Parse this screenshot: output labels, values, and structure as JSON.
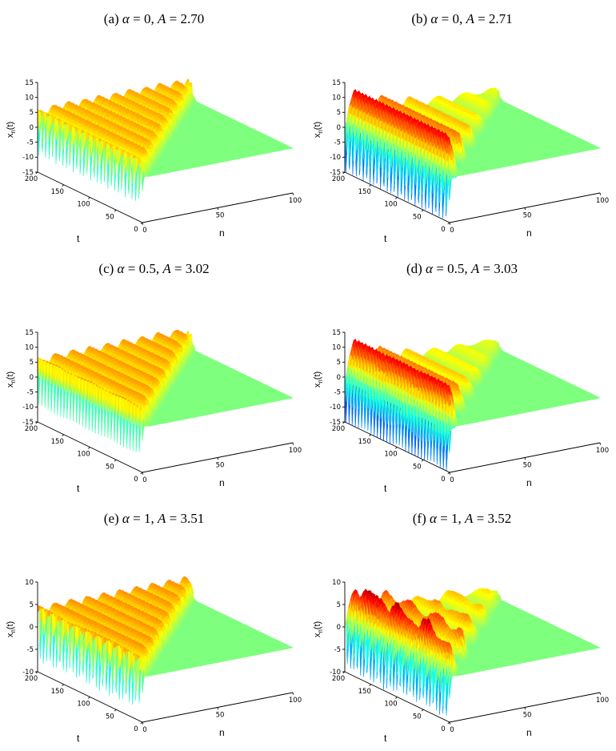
{
  "figure": {
    "background": "#ffffff",
    "colormap": "jet",
    "axis_labels": {
      "z_base": "x",
      "z_sub": "n",
      "z_tail": "(t)",
      "t": "t",
      "n": "n"
    },
    "symbols": {
      "alpha": "α",
      "A": "A",
      "equals": " = ",
      "comma": ", "
    }
  },
  "chart_data": [
    {
      "panel": "a",
      "type": "heatmap",
      "plot_kind": "3d_surface",
      "caption_prefix": "(a) ",
      "alpha": "0",
      "A": "2.70",
      "title": "(a) α = 0, A = 2.70",
      "xlabel": "n",
      "ylabel": "t",
      "zlabel": "x_n(t)",
      "xlim": [
        0,
        100
      ],
      "xticks": [
        0,
        50,
        100
      ],
      "ylim": [
        0,
        200
      ],
      "yticks": [
        0,
        50,
        100,
        150,
        200
      ],
      "zlim": [
        -15,
        15
      ],
      "zticks": [
        -15,
        -10,
        -5,
        0,
        5,
        10,
        15
      ],
      "colormap": "jet",
      "grid": false,
      "regime": "regular plateau: flat level ~+5 with thin spatially periodic stripes, oscillatory boundary spikes to ~-11 near n=0, flat x≈0 region ahead of a front n≈0.5t",
      "surface_params": {
        "plateau": 5.0,
        "stripe_amp": 1.4,
        "stripe_k": 0.62,
        "ripple_amp": 0.35,
        "edge_depth": 16,
        "edge_width": 1.3,
        "edge_period": 6.6,
        "front_speed": 0.52,
        "front_width": 0.9,
        "front_wobble": 1.4
      }
    },
    {
      "panel": "b",
      "type": "heatmap",
      "plot_kind": "3d_surface",
      "caption_prefix": "(b) ",
      "alpha": "0",
      "A": "2.71",
      "title": "(b) α = 0, A = 2.71",
      "xlabel": "n",
      "ylabel": "t",
      "zlabel": "x_n(t)",
      "xlim": [
        0,
        100
      ],
      "xticks": [
        0,
        50,
        100
      ],
      "ylim": [
        0,
        200
      ],
      "yticks": [
        0,
        50,
        100,
        150,
        200
      ],
      "zlim": [
        -15,
        15
      ],
      "zticks": [
        -15,
        -10,
        -5,
        0,
        5,
        10,
        15
      ],
      "colormap": "jet",
      "grid": false,
      "regime": "large-amplitude state: red ridges to ~+14 and blue valleys to ~-9 periodic in n, amplitude decaying with n toward flat x≈0 region ahead of front n≈0.5t",
      "surface_params": {
        "plateau": 2.8,
        "wave_amp": 11.5,
        "wave_decay": 34,
        "wave_k": 0.34,
        "wave_phase": -2.0,
        "time_ripple": 0.18,
        "edge_depth": 13,
        "edge_width": 1.6,
        "edge_period": 6.6,
        "front_speed": 0.52,
        "front_width": 0.9,
        "front_wobble": 1.4
      }
    },
    {
      "panel": "c",
      "type": "heatmap",
      "plot_kind": "3d_surface",
      "caption_prefix": "(c) ",
      "alpha": "0.5",
      "A": "3.02",
      "title": "(c) α = 0.5, A = 3.02",
      "xlabel": "n",
      "ylabel": "t",
      "zlabel": "x_n(t)",
      "xlim": [
        0,
        100
      ],
      "xticks": [
        0,
        50,
        100
      ],
      "ylim": [
        0,
        200
      ],
      "yticks": [
        0,
        50,
        100,
        150,
        200
      ],
      "zlim": [
        -15,
        15
      ],
      "zticks": [
        -15,
        -10,
        -5,
        0,
        5,
        10,
        15
      ],
      "colormap": "jet",
      "grid": false,
      "regime": "regular plateau: flat level ~+5 with striped spatial modulation, boundary spikes at n≈0, flat x≈0 region ahead of front",
      "surface_params": {
        "plateau": 5.2,
        "stripe_amp": 1.5,
        "stripe_k": 0.55,
        "ripple_amp": 0.3,
        "edge_depth": 16,
        "edge_width": 1.2,
        "edge_period": 6.0,
        "front_speed": 0.52,
        "front_width": 0.9,
        "front_wobble": 1.4
      }
    },
    {
      "panel": "d",
      "type": "heatmap",
      "plot_kind": "3d_surface",
      "caption_prefix": "(d) ",
      "alpha": "0.5",
      "A": "3.03",
      "title": "(d) α = 0.5, A = 3.03",
      "xlabel": "n",
      "ylabel": "t",
      "zlabel": "x_n(t)",
      "xlim": [
        0,
        100
      ],
      "xticks": [
        0,
        50,
        100
      ],
      "ylim": [
        0,
        200
      ],
      "yticks": [
        0,
        50,
        100,
        150,
        200
      ],
      "zlim": [
        -15,
        15
      ],
      "zticks": [
        -15,
        -10,
        -5,
        0,
        5,
        10,
        15
      ],
      "colormap": "jet",
      "grid": false,
      "regime": "large-amplitude state: tall red ridges ~+14 and blue valleys ~-9 near small n, decaying with n toward flat x≈0 region ahead of front",
      "surface_params": {
        "plateau": 2.6,
        "wave_amp": 12.0,
        "wave_decay": 30,
        "wave_k": 0.36,
        "wave_phase": -2.1,
        "time_ripple": 0.2,
        "edge_depth": 13,
        "edge_width": 1.5,
        "edge_period": 6.0,
        "front_speed": 0.52,
        "front_width": 0.9,
        "front_wobble": 1.4
      }
    },
    {
      "panel": "e",
      "type": "heatmap",
      "plot_kind": "3d_surface",
      "caption_prefix": "(e) ",
      "alpha": "1",
      "A": "3.51",
      "title": "(e) α = 1, A = 3.51",
      "xlabel": "n",
      "ylabel": "t",
      "zlabel": "x_n(t)",
      "xlim": [
        0,
        100
      ],
      "xticks": [
        0,
        50,
        100
      ],
      "ylim": [
        0,
        200
      ],
      "yticks": [
        0,
        50,
        100,
        150,
        200
      ],
      "zlim": [
        -10,
        10
      ],
      "zticks": [
        -10,
        -5,
        0,
        5,
        10
      ],
      "colormap": "jet",
      "grid": false,
      "regime": "regular plateau: flat level ~+4 with thin stripes, boundary spikes to ~-8 near n=0, flat x≈0 region ahead of front",
      "surface_params": {
        "plateau": 3.6,
        "stripe_amp": 1.0,
        "stripe_k": 0.58,
        "ripple_amp": 0.25,
        "edge_depth": 12,
        "edge_width": 1.3,
        "edge_period": 6.3,
        "front_speed": 0.52,
        "front_width": 0.9,
        "front_wobble": 1.4
      }
    },
    {
      "panel": "f",
      "type": "heatmap",
      "plot_kind": "3d_surface",
      "caption_prefix": "(f) ",
      "alpha": "1",
      "A": "3.52",
      "title": "(f) α = 1, A = 3.52",
      "xlabel": "n",
      "ylabel": "t",
      "zlabel": "x_n(t)",
      "xlim": [
        0,
        100
      ],
      "xticks": [
        0,
        50,
        100
      ],
      "ylim": [
        0,
        200
      ],
      "yticks": [
        0,
        50,
        100,
        150,
        200
      ],
      "zlim": [
        -10,
        10
      ],
      "zticks": [
        -10,
        -5,
        0,
        5,
        10
      ],
      "colormap": "jet",
      "grid": false,
      "regime": "irregular large-amplitude state: broad red ridges to ~+10 and blue valleys to ~-10 extending over wide n range, decaying toward flat x≈0 region ahead of front",
      "surface_params": {
        "plateau": 2.0,
        "wave_amp": 9.0,
        "wave_decay": 45,
        "wave_k": 0.3,
        "wave_phase": -1.8,
        "time_ripple": 0.25,
        "irregular": true,
        "edge_depth": 10,
        "edge_width": 1.8,
        "edge_period": 6.3,
        "front_speed": 0.52,
        "front_width": 0.9,
        "front_wobble": 1.4
      }
    }
  ]
}
